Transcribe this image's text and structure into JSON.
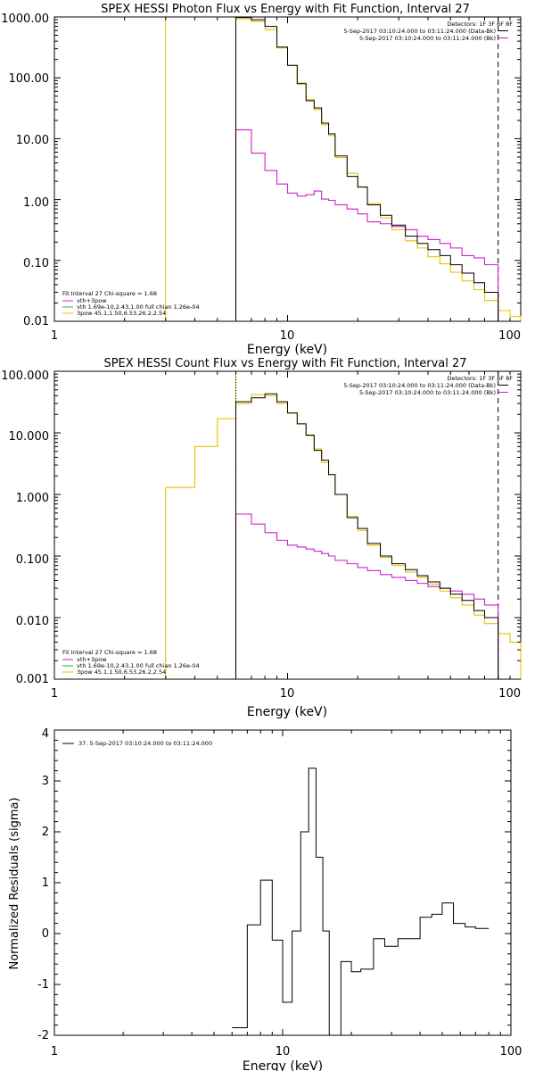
{
  "colors": {
    "data": "#000000",
    "background_model": "#cc22cc",
    "total_fit": "#e8c400",
    "vth_component": "#22bb22",
    "vline": "#e8c400"
  },
  "chart_data": [
    {
      "type": "line",
      "title": "SPEX HESSI Photon Flux vs Energy with Fit Function, Interval 27",
      "xlabel": "Energy (keV)",
      "ylabel": "",
      "xscale": "log",
      "yscale": "log",
      "xlim": [
        1,
        100
      ],
      "ylim": [
        0.01,
        1000
      ],
      "x_tick_labels": [
        "1",
        "10",
        "100"
      ],
      "y_tick_labels": [
        "0.01",
        "0.10",
        "1.00",
        "10.00",
        "100.00",
        "1000.00"
      ],
      "header_right": [
        "Detectors: 1F 3F 6F 8F",
        "5-Sep-2017 03:10:24.000 to 03:11:24.000 (Data-Bk)",
        "5-Sep-2017 03:10:24.000 to 03:11:24.000 (Bk)"
      ],
      "legend_left": [
        "Fit Interval 27    Chi-square = 1.68",
        "vth+3pow",
        "vth 1.69e-10,2.43,1.00  full chian 1.26e-04",
        "3pow 45.1,1.50,6.53,26.2,2.54"
      ],
      "vlines": {
        "solid": 3.0,
        "dotted": 6.0,
        "dashed": 80.0
      },
      "bin_edges": [
        6,
        7,
        8,
        9,
        10,
        11,
        12,
        13,
        14,
        15,
        16,
        18,
        20,
        22,
        25,
        28,
        32,
        36,
        40,
        45,
        50,
        56,
        63,
        70,
        80
      ],
      "series": [
        {
          "name": "Data-Bk",
          "values": [
            980,
            900,
            700,
            320,
            160,
            80,
            42,
            32,
            18,
            12,
            5.2,
            2.4,
            1.6,
            0.82,
            0.55,
            0.38,
            0.25,
            0.19,
            0.15,
            0.12,
            0.085,
            0.062,
            0.043,
            0.03
          ]
        },
        {
          "name": "Bk",
          "values": [
            14,
            5.8,
            3.0,
            1.8,
            1.28,
            1.14,
            1.2,
            1.38,
            1.02,
            0.97,
            0.82,
            0.7,
            0.58,
            0.43,
            0.4,
            0.36,
            0.32,
            0.25,
            0.22,
            0.19,
            0.16,
            0.12,
            0.11,
            0.085
          ]
        }
      ],
      "fit_bin_edges": [
        6,
        7,
        8,
        9,
        10,
        11,
        12,
        13,
        14,
        15,
        16,
        18,
        20,
        22,
        25,
        28,
        32,
        36,
        40,
        45,
        50,
        56,
        63,
        70,
        80,
        90,
        100
      ],
      "fit_values": [
        930,
        840,
        620,
        310,
        160,
        82,
        44,
        30,
        17,
        11.3,
        4.9,
        2.7,
        1.62,
        0.86,
        0.5,
        0.32,
        0.21,
        0.16,
        0.115,
        0.088,
        0.064,
        0.046,
        0.033,
        0.022,
        0.015,
        0.012
      ]
    },
    {
      "type": "line",
      "title": "SPEX HESSI Count Flux vs Energy with Fit Function, Interval 27",
      "xlabel": "Energy (keV)",
      "ylabel": "",
      "xscale": "log",
      "yscale": "log",
      "xlim": [
        1,
        100
      ],
      "ylim": [
        0.001,
        100
      ],
      "x_tick_labels": [
        "1",
        "10",
        "100"
      ],
      "y_tick_labels": [
        "0.001",
        "0.010",
        "0.100",
        "1.000",
        "10.000",
        "100.000"
      ],
      "header_right": [
        "Detectors: 1F 3F 6F 8F",
        "5-Sep-2017 03:10:24.000 to 03:11:24.000 (Data-Bk)",
        "5-Sep-2017 03:10:24.000 to 03:11:24.000 (Bk)"
      ],
      "legend_left": [
        "Fit Interval 27    Chi-square = 1.68",
        "vth+3pow",
        "vth 1.69e-10,2.43,1.00  full chian 1.26e-04",
        "3pow 45.1,1.50,6.53,26.2,2.54"
      ],
      "vlines": {
        "solid": 6.0,
        "dotted": 6.0,
        "dashed": 80.0
      },
      "bin_edges": [
        6,
        7,
        8,
        9,
        10,
        11,
        12,
        13,
        14,
        15,
        16,
        18,
        20,
        22,
        25,
        28,
        32,
        36,
        40,
        45,
        50,
        56,
        63,
        70,
        80
      ],
      "series": [
        {
          "name": "Data-Bk",
          "values": [
            32,
            37,
            43,
            32,
            21,
            14,
            9.2,
            5.2,
            3.6,
            2.1,
            1.0,
            0.42,
            0.28,
            0.16,
            0.1,
            0.075,
            0.06,
            0.048,
            0.038,
            0.03,
            0.024,
            0.019,
            0.013,
            0.01
          ]
        },
        {
          "name": "Bk",
          "values": [
            0.48,
            0.33,
            0.24,
            0.18,
            0.15,
            0.14,
            0.13,
            0.12,
            0.11,
            0.1,
            0.085,
            0.075,
            0.065,
            0.058,
            0.05,
            0.045,
            0.04,
            0.036,
            0.032,
            0.03,
            0.027,
            0.024,
            0.02,
            0.016
          ]
        }
      ],
      "fit_bin_edges": [
        3,
        4,
        5,
        6,
        7,
        8,
        9,
        10,
        11,
        12,
        13,
        14,
        15,
        16,
        18,
        20,
        22,
        25,
        28,
        32,
        36,
        40,
        45,
        50,
        56,
        63,
        70,
        80,
        90,
        100
      ],
      "fit_values": [
        1.3,
        6.0,
        17,
        30,
        42,
        40,
        30,
        21,
        14,
        9,
        5.5,
        3.3,
        2.1,
        1.0,
        0.44,
        0.26,
        0.15,
        0.095,
        0.07,
        0.055,
        0.045,
        0.035,
        0.027,
        0.021,
        0.016,
        0.011,
        0.008,
        0.0055,
        0.004
      ]
    },
    {
      "type": "line",
      "title": "",
      "xlabel": "Energy (keV)",
      "ylabel": "Normalized Residuals (sigma)",
      "xscale": "log",
      "xlim": [
        1,
        100
      ],
      "ylim": [
        -2,
        4
      ],
      "x_tick_labels": [
        "1",
        "10",
        "100"
      ],
      "y_tick_labels": [
        "-2",
        "-1",
        "0",
        "1",
        "2",
        "3",
        "4"
      ],
      "legend": "37.  5-Sep-2017 03:10:24.000 to 03:11:24.000",
      "bin_edges": [
        6,
        7,
        8,
        9,
        10,
        11,
        12,
        13,
        14,
        15,
        16,
        18,
        20,
        22,
        25,
        28,
        32,
        36,
        40,
        45,
        50,
        56,
        63,
        70,
        80
      ],
      "values": [
        -1.85,
        0.17,
        1.05,
        -0.13,
        -1.35,
        0.05,
        2.0,
        3.25,
        1.5,
        0.05,
        -2.0,
        -0.55,
        -0.75,
        -0.7,
        -0.1,
        -0.25,
        -0.1,
        -0.1,
        0.32,
        0.38,
        0.6,
        0.2,
        0.13,
        0.1
      ]
    }
  ]
}
